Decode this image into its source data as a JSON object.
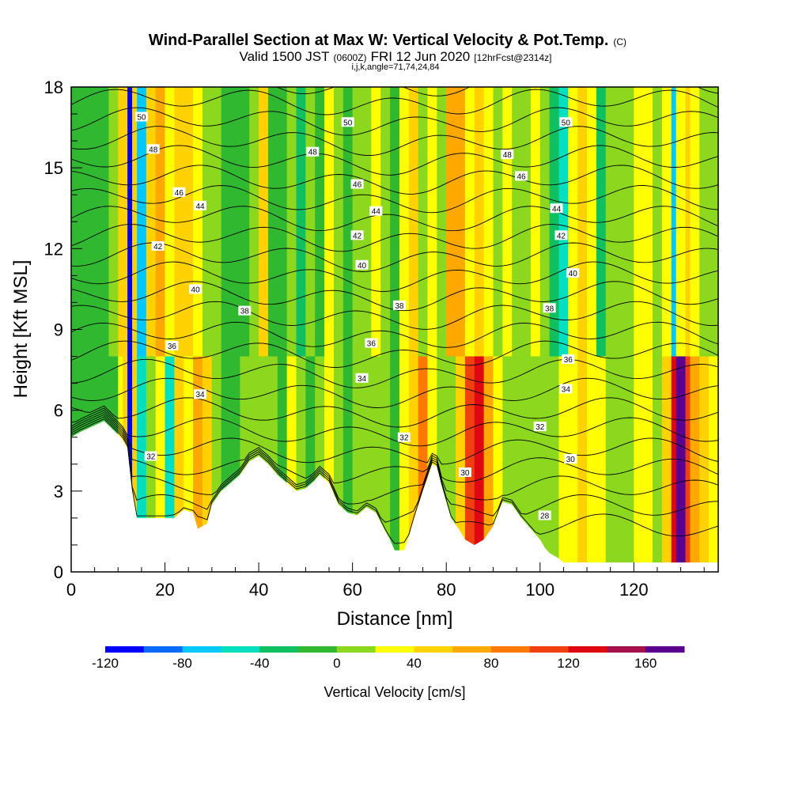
{
  "chart_data": {
    "type": "heatmap",
    "title": {
      "main": "Wind-Parallel Section at Max W: Vertical Velocity & Pot.Temp.",
      "mark": "(C)",
      "valid_a": "Valid 1500 JST",
      "valid_b": "(0600Z)",
      "valid_c": "FRI 12 Jun 2020",
      "valid_d": "[12hrFcst@2314z]",
      "params": "i,j,k,angle=71,74,24,84"
    },
    "xlabel": "Distance [nm]",
    "ylabel": "Height [Kft MSL]",
    "xlim": [
      0,
      138
    ],
    "ylim": [
      0,
      18
    ],
    "x_ticks": [
      0,
      20,
      40,
      60,
      80,
      100,
      120
    ],
    "y_ticks": [
      0,
      3,
      6,
      9,
      12,
      15,
      18
    ],
    "colorbar": {
      "title": "Vertical Velocity [cm/s]",
      "levels": [
        -120,
        -100,
        -80,
        -60,
        -40,
        -20,
        0,
        20,
        40,
        60,
        80,
        100,
        120,
        140,
        160,
        180
      ],
      "tick_labels": [
        "-120",
        "-80",
        "-40",
        "0",
        "40",
        "80",
        "120",
        "160"
      ],
      "colors": [
        "#0000ff",
        "#0a6cff",
        "#00c8ff",
        "#00e0c0",
        "#10c060",
        "#30b830",
        "#8cd81e",
        "#ffff00",
        "#ffd200",
        "#ffa800",
        "#ff7800",
        "#f04010",
        "#e00810",
        "#a8104c",
        "#5a0090"
      ]
    },
    "field": {
      "name": "Vertical Velocity",
      "units": "cm/s",
      "x": [
        0,
        4,
        8,
        10,
        11,
        12,
        13,
        14,
        16,
        18,
        20,
        22,
        24,
        26,
        28,
        30,
        32,
        34,
        36,
        38,
        40,
        42,
        44,
        46,
        48,
        50,
        52,
        54,
        56,
        58,
        60,
        62,
        64,
        66,
        68,
        70,
        72,
        74,
        76,
        78,
        80,
        82,
        84,
        86,
        88,
        90,
        92,
        94,
        96,
        98,
        100,
        102,
        104,
        106,
        108,
        110,
        112,
        114,
        116,
        118,
        120,
        122,
        124,
        126,
        128,
        129,
        130,
        131,
        132,
        134,
        136,
        138
      ],
      "w_lower": [
        -10,
        -10,
        -10,
        30,
        50,
        -110,
        40,
        -50,
        0,
        30,
        -50,
        50,
        30,
        60,
        40,
        0,
        -10,
        -10,
        0,
        5,
        15,
        0,
        -15,
        20,
        0,
        -15,
        5,
        25,
        0,
        -10,
        5,
        10,
        15,
        0,
        -15,
        25,
        40,
        80,
        20,
        0,
        10,
        40,
        100,
        120,
        60,
        30,
        10,
        0,
        5,
        15,
        0,
        10,
        30,
        20,
        45,
        35,
        20,
        0,
        15,
        0,
        30,
        20,
        10,
        45,
        130,
        185,
        160,
        100,
        60,
        40,
        30,
        25
      ],
      "w_upper": [
        -10,
        -10,
        5,
        50,
        40,
        -120,
        50,
        -70,
        50,
        60,
        30,
        50,
        40,
        20,
        10,
        0,
        -15,
        -20,
        -10,
        10,
        40,
        -10,
        -20,
        15,
        -40,
        10,
        -15,
        20,
        5,
        -10,
        15,
        10,
        20,
        0,
        -20,
        30,
        40,
        15,
        20,
        0,
        60,
        70,
        30,
        40,
        20,
        10,
        20,
        0,
        10,
        20,
        0,
        -30,
        -60,
        30,
        40,
        20,
        -30,
        0,
        10,
        15,
        20,
        20,
        0,
        30,
        -70,
        20,
        30,
        40,
        20,
        10,
        5,
        0
      ]
    },
    "terrain_height_kft": [
      [
        0,
        5.0
      ],
      [
        2,
        5.2
      ],
      [
        7,
        5.6
      ],
      [
        10,
        5.1
      ],
      [
        11,
        4.9
      ],
      [
        12,
        4.6
      ],
      [
        13,
        3.0
      ],
      [
        14,
        2.0
      ],
      [
        16,
        2.0
      ],
      [
        18,
        2.0
      ],
      [
        20,
        2.0
      ],
      [
        22,
        2.0
      ],
      [
        24,
        2.3
      ],
      [
        26,
        2.2
      ],
      [
        27,
        1.6
      ],
      [
        29,
        1.8
      ],
      [
        30,
        2.5
      ],
      [
        32,
        3.0
      ],
      [
        34,
        3.3
      ],
      [
        36,
        3.6
      ],
      [
        38,
        4.1
      ],
      [
        40,
        4.3
      ],
      [
        42,
        4.0
      ],
      [
        44,
        3.6
      ],
      [
        46,
        3.3
      ],
      [
        48,
        3.0
      ],
      [
        50,
        3.1
      ],
      [
        52,
        3.4
      ],
      [
        53,
        3.6
      ],
      [
        55,
        3.3
      ],
      [
        57,
        2.5
      ],
      [
        59,
        2.2
      ],
      [
        61,
        2.1
      ],
      [
        63,
        2.4
      ],
      [
        65,
        2.2
      ],
      [
        67,
        1.5
      ],
      [
        68,
        1.2
      ],
      [
        69,
        0.8
      ],
      [
        71,
        0.8
      ],
      [
        72,
        1.3
      ],
      [
        73,
        1.9
      ],
      [
        75,
        3.0
      ],
      [
        77,
        4.0
      ],
      [
        78,
        3.9
      ],
      [
        79,
        3.2
      ],
      [
        81,
        2.0
      ],
      [
        83,
        1.5
      ],
      [
        84,
        1.2
      ],
      [
        86,
        1.0
      ],
      [
        88,
        1.2
      ],
      [
        90,
        1.7
      ],
      [
        92,
        2.6
      ],
      [
        94,
        2.5
      ],
      [
        96,
        2.0
      ],
      [
        98,
        1.6
      ],
      [
        100,
        1.2
      ],
      [
        101,
        0.9
      ],
      [
        102,
        0.7
      ],
      [
        104,
        0.5
      ],
      [
        105,
        0.35
      ],
      [
        138,
        0.35
      ]
    ],
    "contour_levels": [
      28,
      29,
      30,
      31,
      32,
      33,
      34,
      35,
      36,
      37,
      38,
      39,
      40,
      41,
      42,
      43,
      44,
      45,
      46,
      47,
      48,
      49,
      50,
      51,
      52
    ],
    "contour_labels": [
      {
        "text": "50",
        "x": 15,
        "y": 16.9
      },
      {
        "text": "48",
        "x": 17.5,
        "y": 15.7
      },
      {
        "text": "46",
        "x": 23,
        "y": 14.1
      },
      {
        "text": "44",
        "x": 27.5,
        "y": 13.6
      },
      {
        "text": "42",
        "x": 18.5,
        "y": 12.1
      },
      {
        "text": "40",
        "x": 26.5,
        "y": 10.5
      },
      {
        "text": "38",
        "x": 37,
        "y": 9.7
      },
      {
        "text": "36",
        "x": 21.5,
        "y": 8.4
      },
      {
        "text": "34",
        "x": 27.5,
        "y": 6.6
      },
      {
        "text": "32",
        "x": 17,
        "y": 4.3
      },
      {
        "text": "50",
        "x": 59,
        "y": 16.7
      },
      {
        "text": "48",
        "x": 51.5,
        "y": 15.6
      },
      {
        "text": "46",
        "x": 61,
        "y": 14.4
      },
      {
        "text": "44",
        "x": 65,
        "y": 13.4
      },
      {
        "text": "42",
        "x": 61,
        "y": 12.5
      },
      {
        "text": "40",
        "x": 62,
        "y": 11.4
      },
      {
        "text": "38",
        "x": 70,
        "y": 9.9
      },
      {
        "text": "36",
        "x": 64,
        "y": 8.5
      },
      {
        "text": "34",
        "x": 62,
        "y": 7.2
      },
      {
        "text": "32",
        "x": 71,
        "y": 5.0
      },
      {
        "text": "30",
        "x": 84,
        "y": 3.7
      },
      {
        "text": "50",
        "x": 105.5,
        "y": 16.7
      },
      {
        "text": "48",
        "x": 93,
        "y": 15.5
      },
      {
        "text": "46",
        "x": 96,
        "y": 14.7
      },
      {
        "text": "44",
        "x": 103.5,
        "y": 13.5
      },
      {
        "text": "42",
        "x": 104.5,
        "y": 12.5
      },
      {
        "text": "40",
        "x": 107,
        "y": 11.1
      },
      {
        "text": "38",
        "x": 102,
        "y": 9.8
      },
      {
        "text": "36",
        "x": 106,
        "y": 7.9
      },
      {
        "text": "34",
        "x": 105.5,
        "y": 6.8
      },
      {
        "text": "32",
        "x": 100,
        "y": 5.4
      },
      {
        "text": "30",
        "x": 106.5,
        "y": 4.2
      },
      {
        "text": "28",
        "x": 101,
        "y": 2.1
      }
    ]
  }
}
